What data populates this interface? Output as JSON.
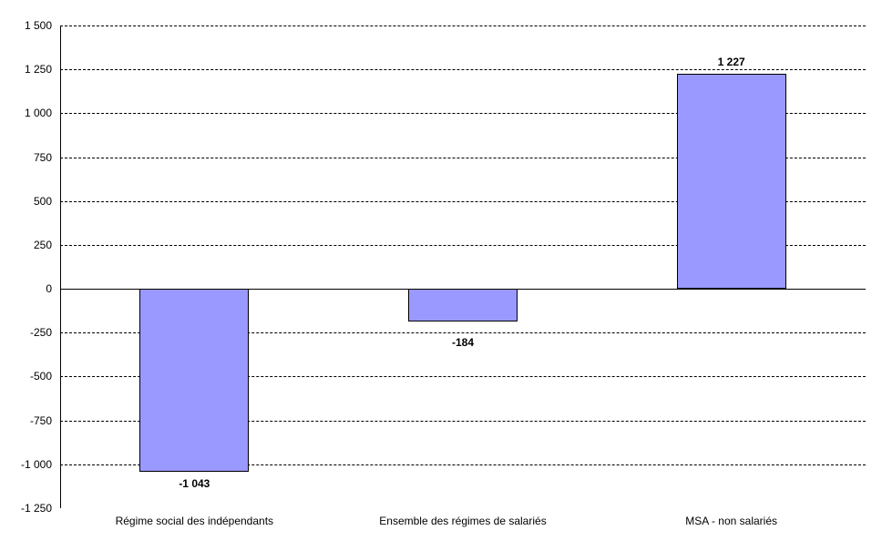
{
  "chart_data": {
    "type": "bar",
    "title": "",
    "xlabel": "",
    "ylabel": "",
    "legend": "none",
    "grid": "horizontal-dashed",
    "background_color": "#ffffff",
    "bar_color": "#9999ff",
    "bar_border_color": "#000000",
    "text_color": "#000000",
    "categories": [
      "Régime social des indépendants",
      "Ensemble des régimes de salariés",
      "MSA - non salariés"
    ],
    "values": [
      -1043,
      -184,
      1227
    ],
    "value_labels": [
      "-1 043",
      "-184",
      "1 227"
    ],
    "ylim": [
      -1250,
      1500
    ],
    "ytick_step": 250,
    "yticks": [
      {
        "value": 1500,
        "label": "1 500"
      },
      {
        "value": 1250,
        "label": "1 250"
      },
      {
        "value": 1000,
        "label": "1 000"
      },
      {
        "value": 750,
        "label": "750"
      },
      {
        "value": 500,
        "label": "500"
      },
      {
        "value": 250,
        "label": "250"
      },
      {
        "value": 0,
        "label": "0"
      },
      {
        "value": -250,
        "label": "-250"
      },
      {
        "value": -500,
        "label": "-500"
      },
      {
        "value": -750,
        "label": "-750"
      },
      {
        "value": -1000,
        "label": "-1 000"
      },
      {
        "value": -1250,
        "label": "-1 250"
      }
    ]
  }
}
